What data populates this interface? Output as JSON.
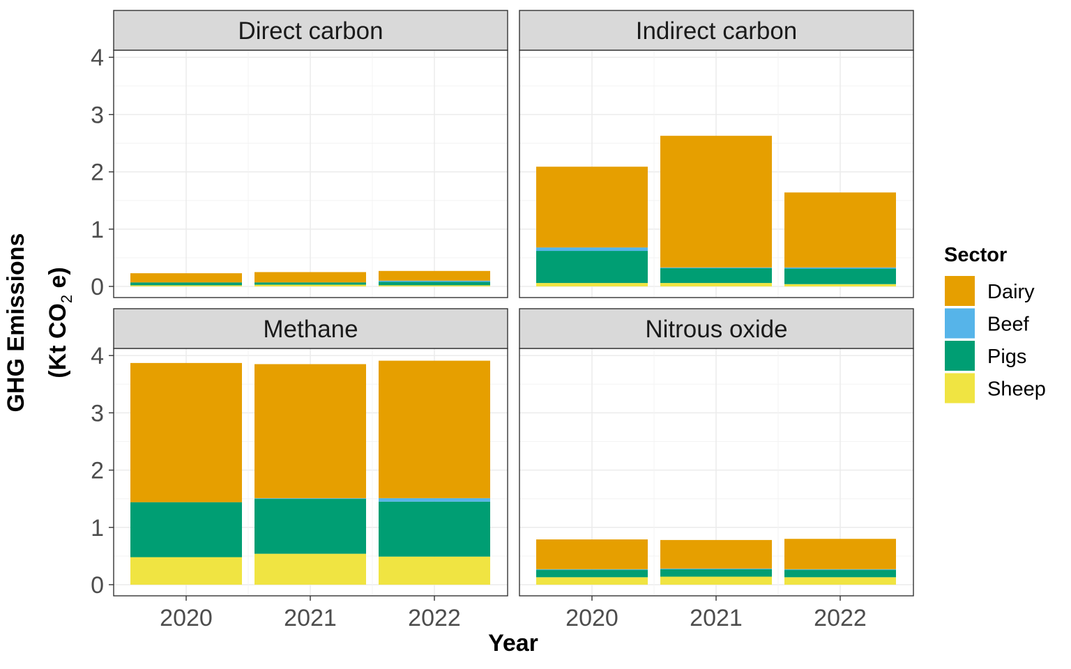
{
  "chart_data": {
    "type": "bar",
    "stacked": true,
    "categories": [
      "2020",
      "2021",
      "2022"
    ],
    "xlabel": "Year",
    "ylabel": "GHG Emissions",
    "ylabel_unit": {
      "open": "(Kt CO",
      "sub": "2",
      "close": " e)"
    },
    "ylim": [
      0,
      4
    ],
    "y_ticks": [
      0,
      1,
      2,
      3,
      4
    ],
    "grid": true,
    "legend": {
      "title": "Sector",
      "position": "right",
      "entries": [
        {
          "name": "Dairy",
          "color": "#E69F00"
        },
        {
          "name": "Beef",
          "color": "#56B4E9"
        },
        {
          "name": "Pigs",
          "color": "#009E73"
        },
        {
          "name": "Sheep",
          "color": "#F0E442"
        }
      ]
    },
    "panels": [
      {
        "title": "Direct carbon",
        "series": [
          {
            "name": "Sheep",
            "values": [
              0.02,
              0.03,
              0.02
            ]
          },
          {
            "name": "Pigs",
            "values": [
              0.05,
              0.04,
              0.06
            ]
          },
          {
            "name": "Beef",
            "values": [
              0.0,
              0.0,
              0.02
            ]
          },
          {
            "name": "Dairy",
            "values": [
              0.16,
              0.18,
              0.17
            ]
          }
        ]
      },
      {
        "title": "Indirect carbon",
        "series": [
          {
            "name": "Sheep",
            "values": [
              0.06,
              0.06,
              0.04
            ]
          },
          {
            "name": "Pigs",
            "values": [
              0.56,
              0.26,
              0.27
            ]
          },
          {
            "name": "Beef",
            "values": [
              0.06,
              0.01,
              0.02
            ]
          },
          {
            "name": "Dairy",
            "values": [
              1.41,
              2.3,
              1.31
            ]
          }
        ]
      },
      {
        "title": "Methane",
        "series": [
          {
            "name": "Sheep",
            "values": [
              0.48,
              0.54,
              0.49
            ]
          },
          {
            "name": "Pigs",
            "values": [
              0.96,
              0.96,
              0.96
            ]
          },
          {
            "name": "Beef",
            "values": [
              0.0,
              0.01,
              0.06
            ]
          },
          {
            "name": "Dairy",
            "values": [
              2.43,
              2.34,
              2.4
            ]
          }
        ]
      },
      {
        "title": "Nitrous oxide",
        "series": [
          {
            "name": "Sheep",
            "values": [
              0.13,
              0.14,
              0.13
            ]
          },
          {
            "name": "Pigs",
            "values": [
              0.13,
              0.13,
              0.13
            ]
          },
          {
            "name": "Beef",
            "values": [
              0.01,
              0.01,
              0.01
            ]
          },
          {
            "name": "Dairy",
            "values": [
              0.52,
              0.5,
              0.53
            ]
          }
        ]
      }
    ]
  }
}
